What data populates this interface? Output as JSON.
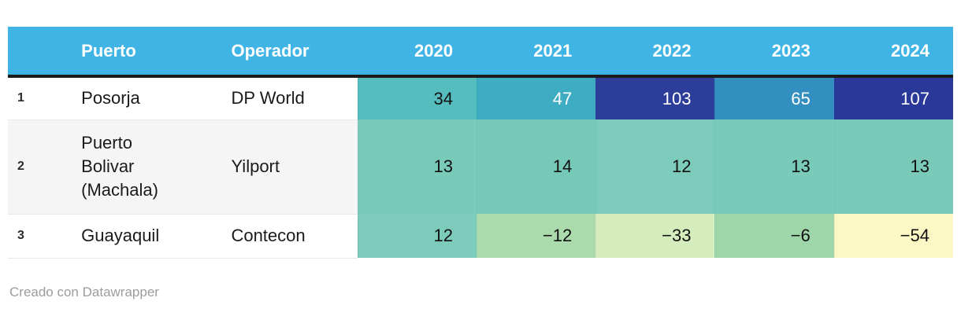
{
  "header": {
    "rank": "",
    "puerto": "Puerto",
    "operador": "Operador",
    "y2020": "2020",
    "y2021": "2021",
    "y2022": "2022",
    "y2023": "2023",
    "y2024": "2024"
  },
  "rows": [
    {
      "rank": "1",
      "puerto": "Posorja",
      "operador": "DP World",
      "cells": [
        {
          "v": "34",
          "bg": "#56bdbe",
          "fg": "#111111"
        },
        {
          "v": "47",
          "bg": "#3eadc3",
          "fg": "#ffffff"
        },
        {
          "v": "103",
          "bg": "#2c3e9a",
          "fg": "#ffffff"
        },
        {
          "v": "65",
          "bg": "#348fc1",
          "fg": "#ffffff"
        },
        {
          "v": "107",
          "bg": "#2a389a",
          "fg": "#ffffff"
        }
      ]
    },
    {
      "rank": "2",
      "puerto": "Puerto\nBolivar\n(Machala)",
      "operador": "Yilport",
      "cells": [
        {
          "v": "13",
          "bg": "#79cab8",
          "fg": "#111111"
        },
        {
          "v": "14",
          "bg": "#76c9b7",
          "fg": "#111111"
        },
        {
          "v": "12",
          "bg": "#7dccbb",
          "fg": "#111111"
        },
        {
          "v": "13",
          "bg": "#79cab8",
          "fg": "#111111"
        },
        {
          "v": "13",
          "bg": "#79cab8",
          "fg": "#111111"
        }
      ]
    },
    {
      "rank": "3",
      "puerto": "Guayaquil",
      "operador": "Contecon",
      "cells": [
        {
          "v": "12",
          "bg": "#7dccbb",
          "fg": "#111111"
        },
        {
          "v": "−12",
          "bg": "#abdaad",
          "fg": "#111111"
        },
        {
          "v": "−33",
          "bg": "#d5edbc",
          "fg": "#111111"
        },
        {
          "v": "−6",
          "bg": "#9ed6aa",
          "fg": "#111111"
        },
        {
          "v": "−54",
          "bg": "#fbf8c5",
          "fg": "#111111"
        }
      ]
    }
  ],
  "footer": {
    "attribution": "Creado con Datawrapper"
  },
  "colors": {
    "header_bg": "#40b5e5",
    "header_text": "#ffffff",
    "header_rule": "#1c1c1c",
    "zebra_row_bg": "#f5f5f5",
    "attribution_text": "#9c9c9c"
  },
  "chart_data": {
    "type": "heatmap",
    "title": "",
    "columns": [
      "Puerto",
      "Operador",
      "2020",
      "2021",
      "2022",
      "2023",
      "2024"
    ],
    "rows": [
      {
        "rank": 1,
        "puerto": "Posorja",
        "operador": "DP World",
        "values": {
          "2020": 34,
          "2021": 47,
          "2022": 103,
          "2023": 65,
          "2024": 107
        }
      },
      {
        "rank": 2,
        "puerto": "Puerto Bolivar (Machala)",
        "operador": "Yilport",
        "values": {
          "2020": 13,
          "2021": 14,
          "2022": 12,
          "2023": 13,
          "2024": 13
        }
      },
      {
        "rank": 3,
        "puerto": "Guayaquil",
        "operador": "Contecon",
        "values": {
          "2020": 12,
          "2021": -12,
          "2022": -33,
          "2023": -6,
          "2024": -54
        }
      }
    ],
    "color_scale": "high values dark blue, mid values teal-green, negative values pale green to pale yellow",
    "attribution": "Creado con Datawrapper"
  }
}
